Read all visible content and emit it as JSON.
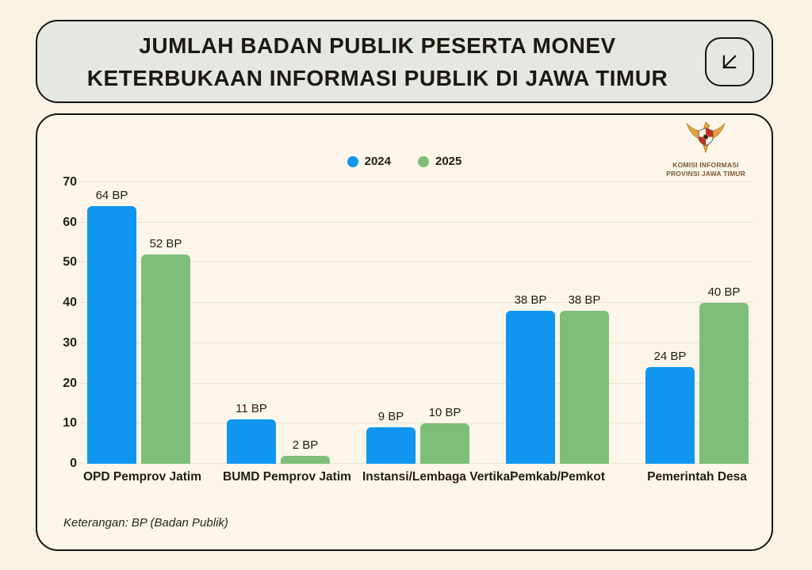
{
  "header": {
    "title_line1": "JUMLAH BADAN PUBLIK PESERTA MONEV",
    "title_line2": "KETERBUKAAN INFORMASI PUBLIK DI JAWA TIMUR"
  },
  "logo": {
    "org_line1": "KOMISI INFORMASI",
    "org_line2": "PROVINSI JAWA TIMUR"
  },
  "footer": {
    "note": "Keterangan: BP (Badan Publik)"
  },
  "colors": {
    "page_background": "#F9F2E3",
    "title_card_background": "#E5E8E1",
    "chart_card_background": "#FBF6E9",
    "border": "#151515",
    "series_2024": "#1096F0",
    "series_2025": "#7DBE7B",
    "gridline": "#EAE2CF",
    "logo_text": "#7A5834"
  },
  "chart_data": {
    "type": "bar",
    "title": "JUMLAH BADAN PUBLIK PESERTA MONEV KETERBUKAAN INFORMASI PUBLIK DI JAWA TIMUR",
    "categories": [
      "OPD Pemprov Jatim",
      "BUMD Pemprov Jatim",
      "Instansi/Lembaga Vertikal",
      "Pemkab/Pemkot",
      "Pemerintah Desa"
    ],
    "series": [
      {
        "name": "2024",
        "color": "#1096F0",
        "values": [
          64,
          11,
          9,
          38,
          24
        ]
      },
      {
        "name": "2025",
        "color": "#7DBE7B",
        "values": [
          52,
          2,
          10,
          38,
          40
        ]
      }
    ],
    "value_label_suffix": " BP",
    "value_labels": [
      [
        "64 BP",
        "11 BP",
        "9 BP",
        "38 BP",
        "24 BP"
      ],
      [
        "52 BP",
        "2 BP",
        "10 BP",
        "38 BP",
        "40 BP"
      ]
    ],
    "xlabel": "",
    "ylabel": "",
    "ylim": [
      0,
      70
    ],
    "yticks": [
      0,
      10,
      20,
      30,
      40,
      50,
      60,
      70
    ],
    "grid": true,
    "legend_position": "top-center"
  }
}
